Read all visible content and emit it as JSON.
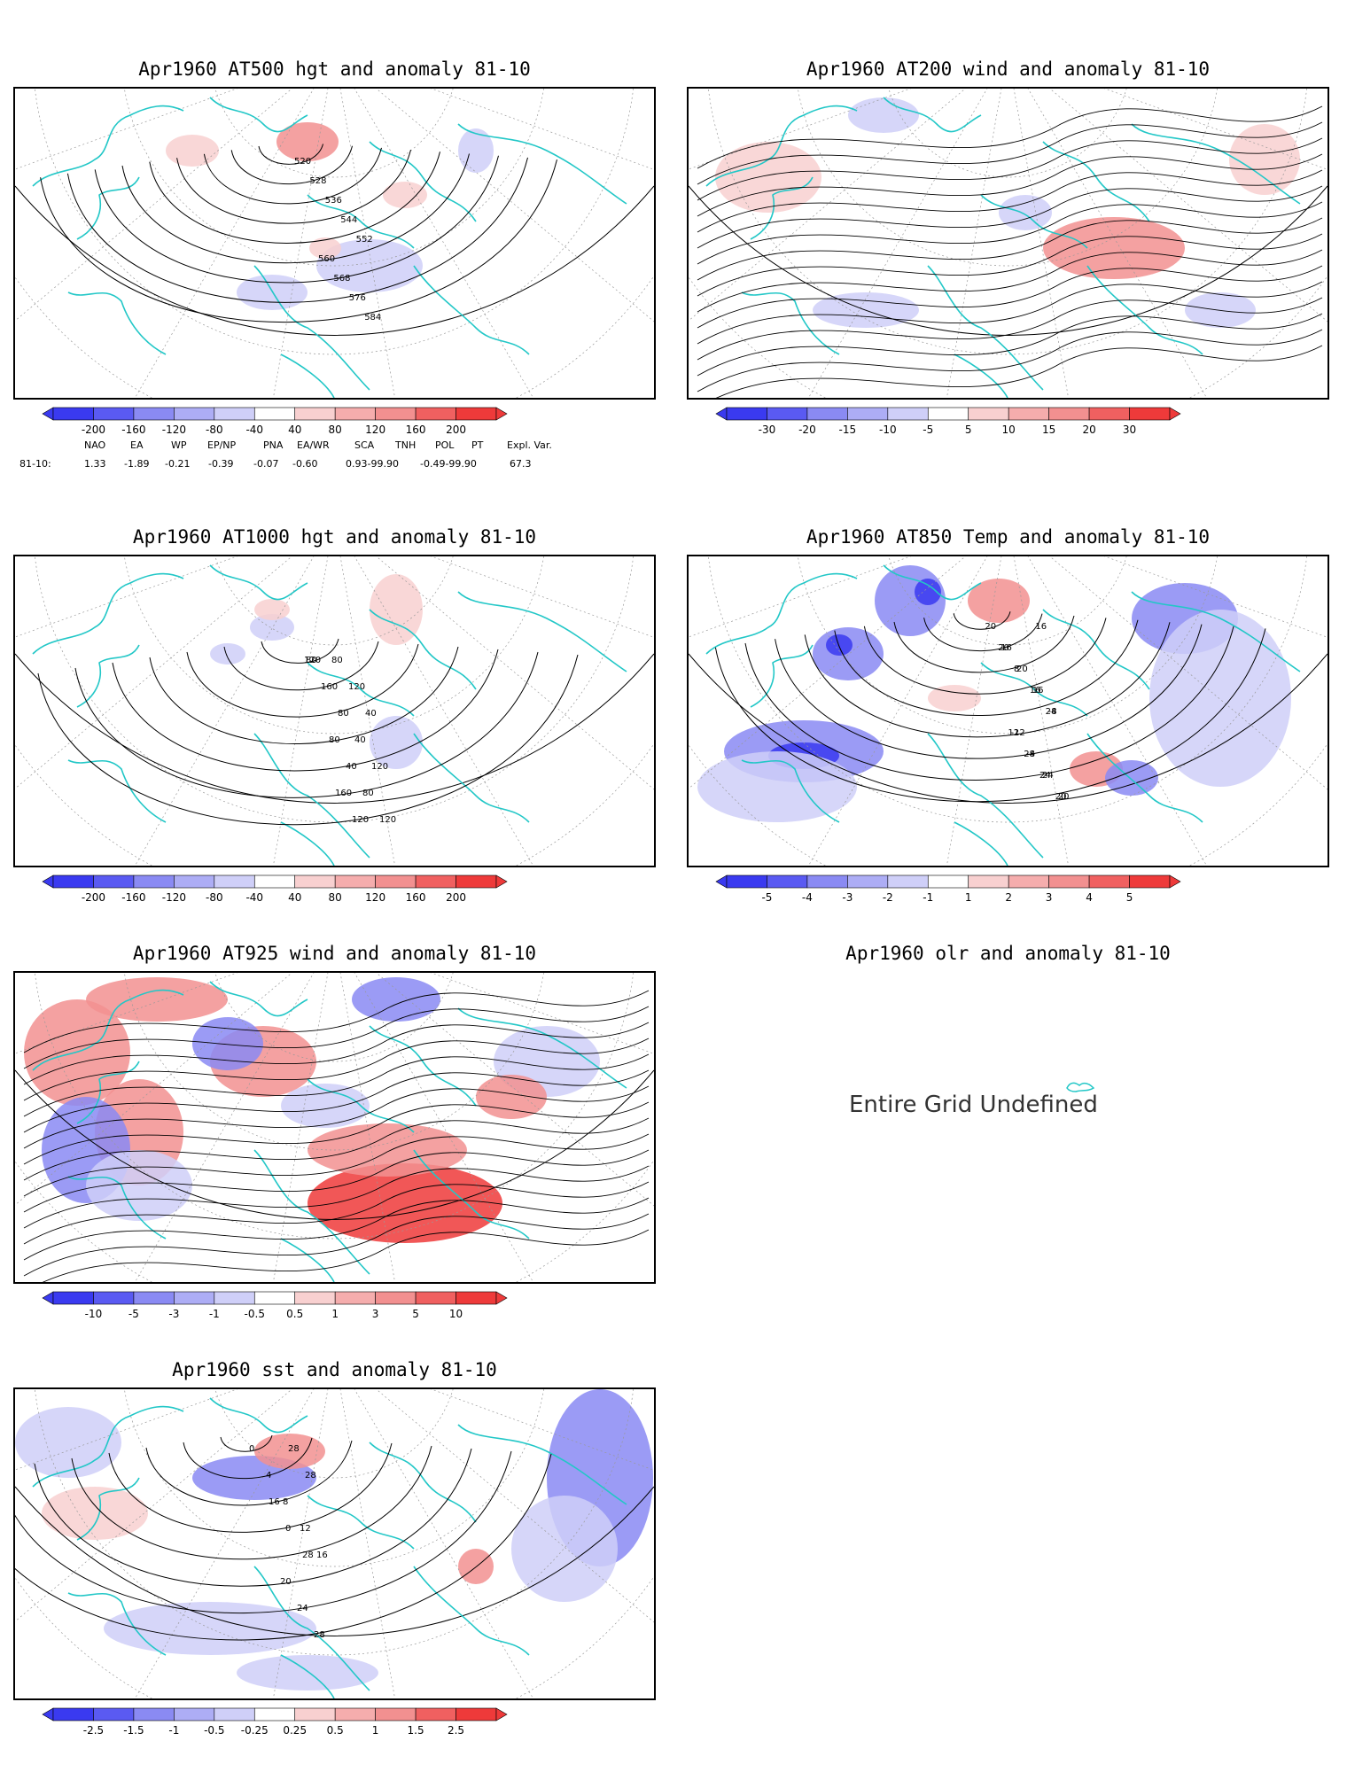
{
  "colors": {
    "coast": "#22c7c7",
    "blue_strong": "#3a3af0",
    "blue_mid": "#8a8af3",
    "blue_light": "#cfcff8",
    "red_light": "#f8d0d0",
    "red_mid": "#f29090",
    "red_strong": "#ee3a3a"
  },
  "panels": [
    {
      "id": "at500",
      "title": "Apr1960 AT500 hgt and anomaly 81-10",
      "cbar_ticks": [
        "-200",
        "-160",
        "-120",
        "-80",
        "-40",
        "40",
        "80",
        "120",
        "160",
        "200"
      ],
      "contour_labels": [
        "520",
        "528",
        "536",
        "544",
        "552",
        "560",
        "568",
        "576",
        "584"
      ]
    },
    {
      "id": "at200",
      "title": "Apr1960 AT200 wind and anomaly 81-10",
      "cbar_ticks": [
        "-30",
        "-20",
        "-15",
        "-10",
        "-5",
        "5",
        "10",
        "15",
        "20",
        "30"
      ],
      "contour_labels": []
    },
    {
      "id": "at1000",
      "title": "Apr1960 AT1000 hgt and anomaly 81-10",
      "cbar_ticks": [
        "-200",
        "-160",
        "-120",
        "-80",
        "-40",
        "40",
        "80",
        "120",
        "160",
        "200"
      ],
      "contour_labels": [
        "120",
        "160",
        "80",
        "40",
        "120",
        "160",
        "120",
        "80",
        "120",
        "40",
        "80",
        "40",
        "80",
        "120",
        "80"
      ]
    },
    {
      "id": "at850",
      "title": "Apr1960 AT850 Temp and anomaly 81-10",
      "cbar_ticks": [
        "-5",
        "-4",
        "-3",
        "-2",
        "-1",
        "1",
        "2",
        "3",
        "4",
        "5"
      ],
      "contour_labels": [
        "20",
        "16",
        "20",
        "16",
        "-8",
        "-12",
        "-4",
        "24",
        "20",
        "16",
        "20",
        "8",
        "16",
        "24",
        "12",
        "28",
        "24",
        "20"
      ]
    },
    {
      "id": "at925",
      "title": "Apr1960 AT925 wind and anomaly 81-10",
      "cbar_ticks": [
        "-10",
        "-5",
        "-3",
        "-1",
        "-0.5",
        "0.5",
        "1",
        "3",
        "5",
        "10"
      ],
      "contour_labels": []
    },
    {
      "id": "olr",
      "title": "Apr1960 olr and anomaly 81-10",
      "message": "Entire Grid Undefined"
    },
    {
      "id": "sst",
      "title": "Apr1960 sst and anomaly 81-10",
      "cbar_ticks": [
        "-2.5",
        "-1.5",
        "-1",
        "-0.5",
        "-0.25",
        "0.25",
        "0.5",
        "1",
        "1.5",
        "2.5"
      ],
      "contour_labels": [
        "0",
        "4",
        "8",
        "12",
        "16",
        "20",
        "24",
        "28",
        "28",
        "28",
        "16",
        "0",
        "28"
      ]
    }
  ],
  "indices": {
    "names": [
      "NAO",
      "EA",
      "WP",
      "EP/NP",
      "PNA",
      "EA/WR",
      "SCA",
      "TNH",
      "POL",
      "PT",
      "Expl. Var."
    ],
    "row_label": "81-10:",
    "values": [
      "1.33",
      "-1.89",
      "-0.21",
      "-0.39",
      "-0.07",
      "-0.60",
      "0.93-99.90",
      "-0.49-99.90",
      "67.3"
    ]
  }
}
